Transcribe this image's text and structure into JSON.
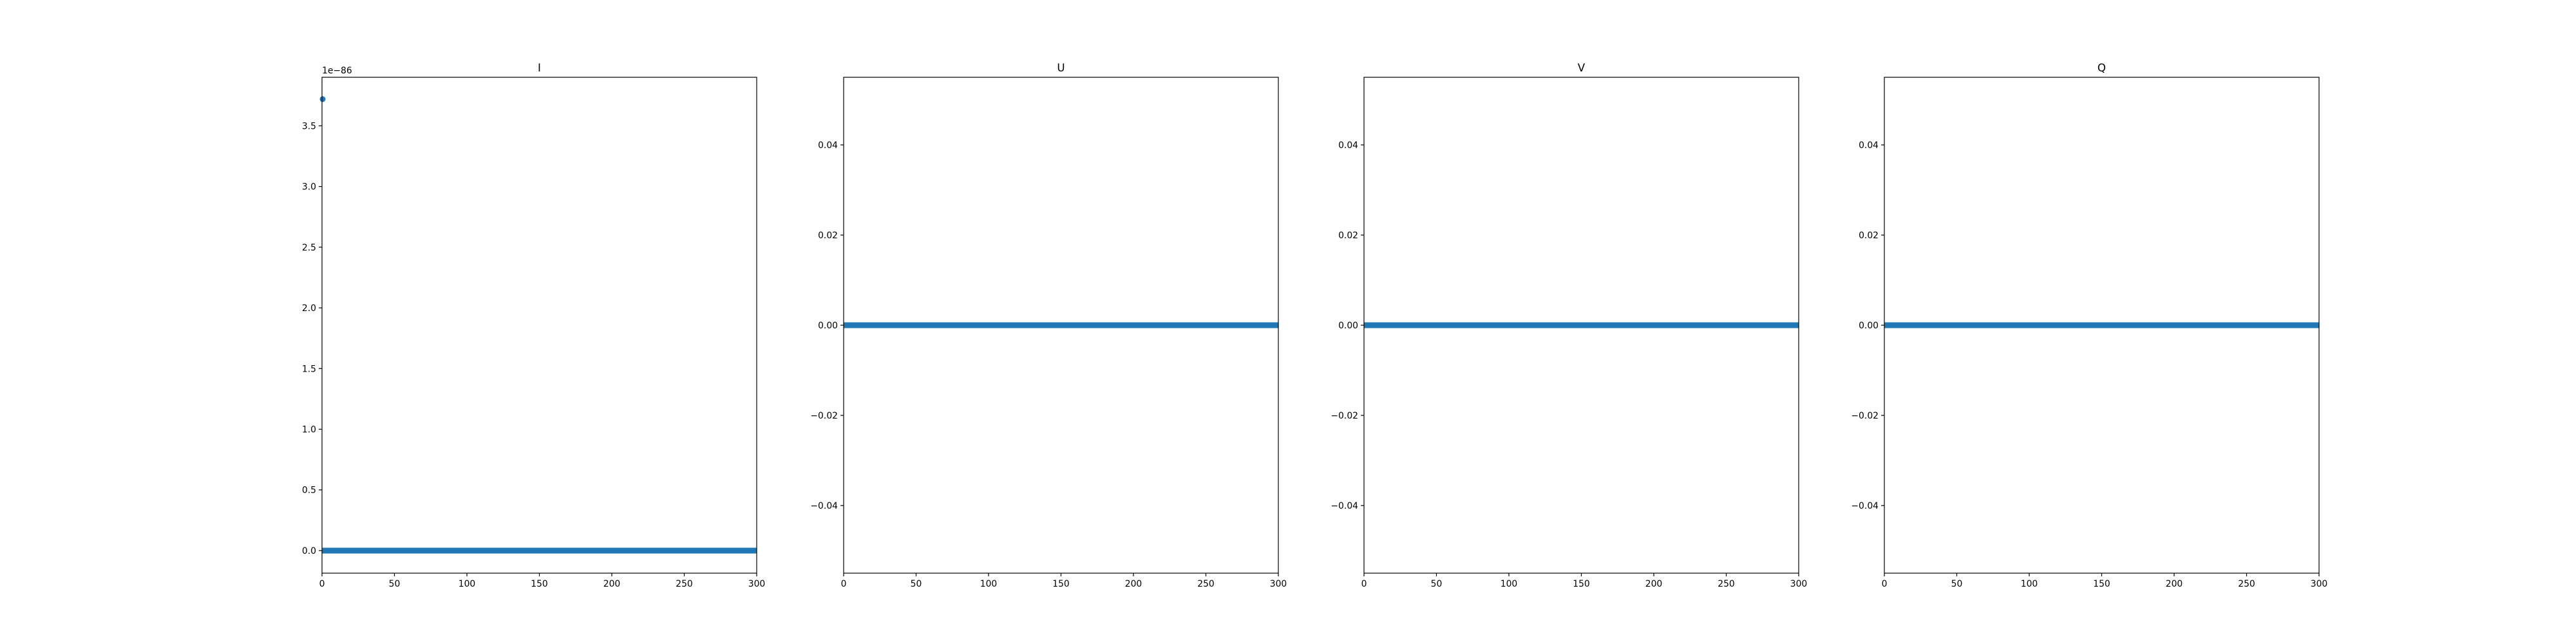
{
  "figure": {
    "line_color": "#1f77b4",
    "axes_color": "#000000",
    "background": "#ffffff"
  },
  "chart_data": [
    {
      "type": "scatter",
      "title": "I",
      "xlabel": "",
      "ylabel": "",
      "xlim": [
        0,
        300
      ],
      "ylim": [
        -0.186,
        3.9
      ],
      "y_offset_text": "1e−86",
      "x_ticks": [
        0,
        50,
        100,
        150,
        200,
        250,
        300
      ],
      "x_tick_labels": [
        "0",
        "50",
        "100",
        "150",
        "200",
        "250",
        "300"
      ],
      "y_ticks": [
        0,
        0.5,
        1.0,
        1.5,
        2.0,
        2.5,
        3.0,
        3.5
      ],
      "y_tick_labels": [
        "0.0",
        "0.5",
        "1.0",
        "1.5",
        "2.0",
        "2.5",
        "3.0",
        "3.5"
      ],
      "grid": false,
      "series": [
        {
          "x_range": [
            0,
            300
          ],
          "y_constant": 0,
          "first_point": {
            "x": 0,
            "y": 3.72
          }
        }
      ]
    },
    {
      "type": "scatter",
      "title": "U",
      "xlabel": "",
      "ylabel": "",
      "xlim": [
        0,
        300
      ],
      "ylim": [
        -0.055,
        0.055
      ],
      "y_offset_text": "",
      "x_ticks": [
        0,
        50,
        100,
        150,
        200,
        250,
        300
      ],
      "x_tick_labels": [
        "0",
        "50",
        "100",
        "150",
        "200",
        "250",
        "300"
      ],
      "y_ticks": [
        -0.04,
        -0.02,
        0.0,
        0.02,
        0.04
      ],
      "y_tick_labels": [
        "−0.04",
        "−0.02",
        "0.00",
        "0.02",
        "0.04"
      ],
      "grid": false,
      "series": [
        {
          "x_range": [
            0,
            300
          ],
          "y_constant": 0
        }
      ]
    },
    {
      "type": "scatter",
      "title": "V",
      "xlabel": "",
      "ylabel": "",
      "xlim": [
        0,
        300
      ],
      "ylim": [
        -0.055,
        0.055
      ],
      "y_offset_text": "",
      "x_ticks": [
        0,
        50,
        100,
        150,
        200,
        250,
        300
      ],
      "x_tick_labels": [
        "0",
        "50",
        "100",
        "150",
        "200",
        "250",
        "300"
      ],
      "y_ticks": [
        -0.04,
        -0.02,
        0.0,
        0.02,
        0.04
      ],
      "y_tick_labels": [
        "−0.04",
        "−0.02",
        "0.00",
        "0.02",
        "0.04"
      ],
      "grid": false,
      "series": [
        {
          "x_range": [
            0,
            300
          ],
          "y_constant": 0
        }
      ]
    },
    {
      "type": "scatter",
      "title": "Q",
      "xlabel": "",
      "ylabel": "",
      "xlim": [
        0,
        300
      ],
      "ylim": [
        -0.055,
        0.055
      ],
      "y_offset_text": "",
      "x_ticks": [
        0,
        50,
        100,
        150,
        200,
        250,
        300
      ],
      "x_tick_labels": [
        "0",
        "50",
        "100",
        "150",
        "200",
        "250",
        "300"
      ],
      "y_ticks": [
        -0.04,
        -0.02,
        0.0,
        0.02,
        0.04
      ],
      "y_tick_labels": [
        "−0.04",
        "−0.02",
        "0.00",
        "0.02",
        "0.04"
      ],
      "grid": false,
      "series": [
        {
          "x_range": [
            0,
            300
          ],
          "y_constant": 0
        }
      ]
    }
  ]
}
